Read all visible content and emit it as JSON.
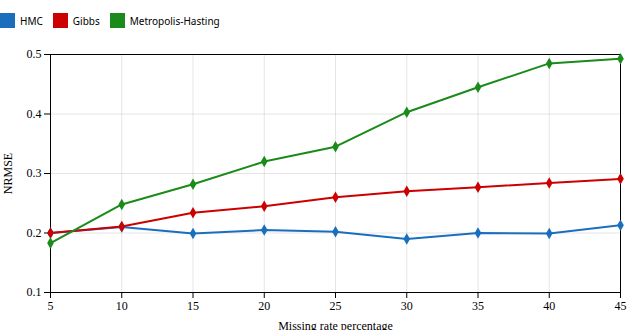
{
  "chart_data": {
    "type": "line",
    "xlabel": "Missing rate percentage",
    "ylabel": "NRMSE",
    "x": [
      5,
      10,
      15,
      20,
      25,
      30,
      35,
      40,
      45
    ],
    "series": [
      {
        "name": "HMC",
        "color": "#1a6fbd",
        "values": [
          0.2,
          0.21,
          0.199,
          0.205,
          0.202,
          0.19,
          0.2,
          0.199,
          0.213
        ]
      },
      {
        "name": "Gibbs",
        "color": "#cc0000",
        "values": [
          0.2,
          0.211,
          0.234,
          0.245,
          0.26,
          0.27,
          0.277,
          0.284,
          0.291
        ]
      },
      {
        "name": "Metropolis-Hasting",
        "color": "#1a8a1a",
        "values": [
          0.183,
          0.248,
          0.282,
          0.32,
          0.345,
          0.403,
          0.445,
          0.485,
          0.493
        ]
      }
    ],
    "xlim": [
      5,
      45
    ],
    "ylim": [
      0.1,
      0.5
    ],
    "xticks": [
      5,
      10,
      15,
      20,
      25,
      30,
      35,
      40,
      45
    ],
    "yticks": [
      0.1,
      0.2,
      0.3,
      0.4,
      0.5
    ],
    "grid": true,
    "legend": "top",
    "marker": "diamond"
  }
}
